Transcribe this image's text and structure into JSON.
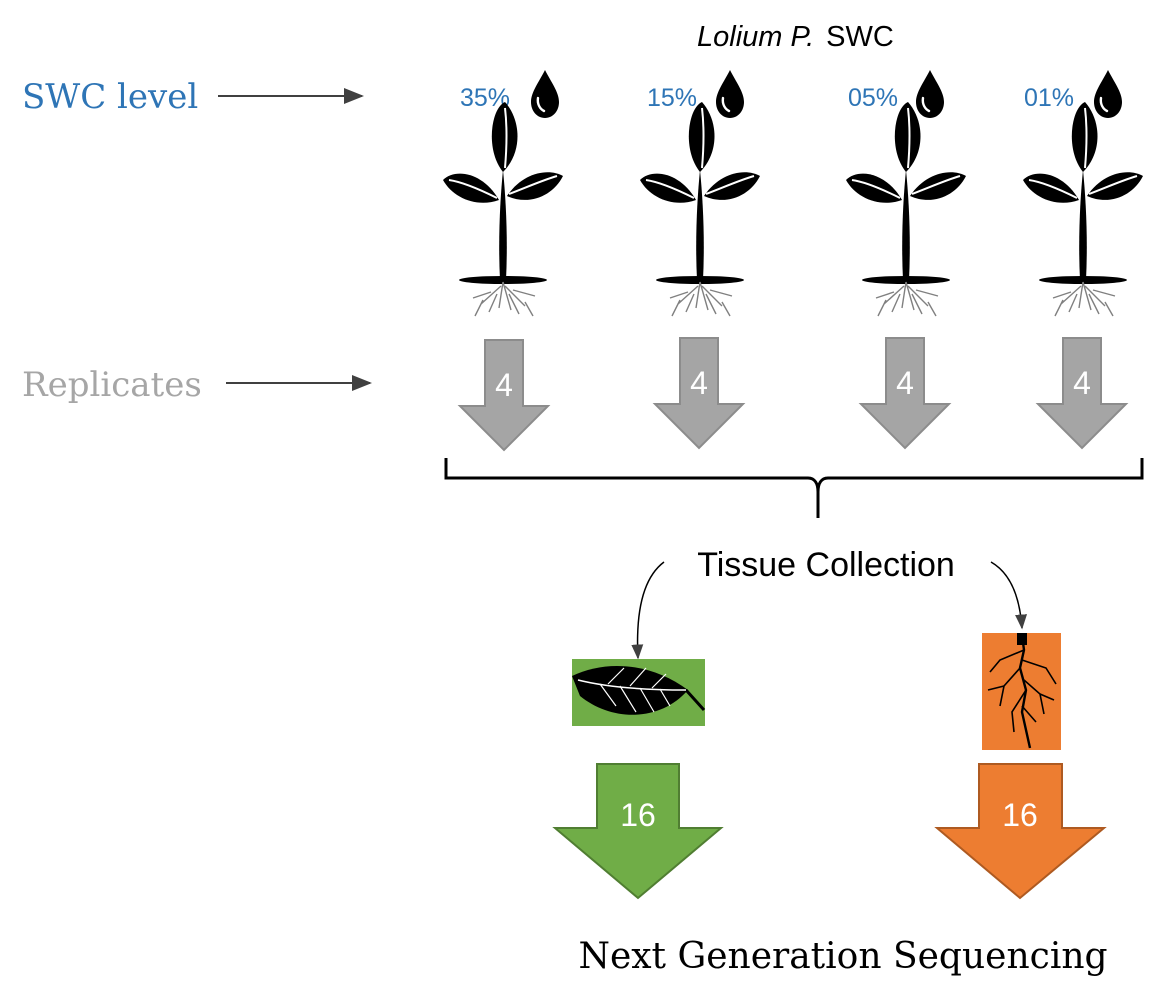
{
  "title": {
    "species": "Lolium P.",
    "suffix": "SWC"
  },
  "labels": {
    "swc_level": "SWC level",
    "replicates": "Replicates"
  },
  "swc_levels": [
    "35%",
    "15%",
    "05%",
    "01%"
  ],
  "replicates": [
    "4",
    "4",
    "4",
    "4"
  ],
  "tissue_collection": "Tissue Collection",
  "tissues": [
    {
      "name": "leaf",
      "count": "16",
      "color": "#70ad47",
      "border": "#507e32"
    },
    {
      "name": "root",
      "count": "16",
      "color": "#ed7d31",
      "border": "#ae5a21"
    }
  ],
  "footer": "Next Generation Sequencing",
  "colors": {
    "accent_blue": "#2e75b6",
    "gray_text": "#a6a6a6",
    "arrow_gray": "#a5a5a5",
    "arrow_gray_border": "#8c8c8c",
    "black": "#000000"
  }
}
